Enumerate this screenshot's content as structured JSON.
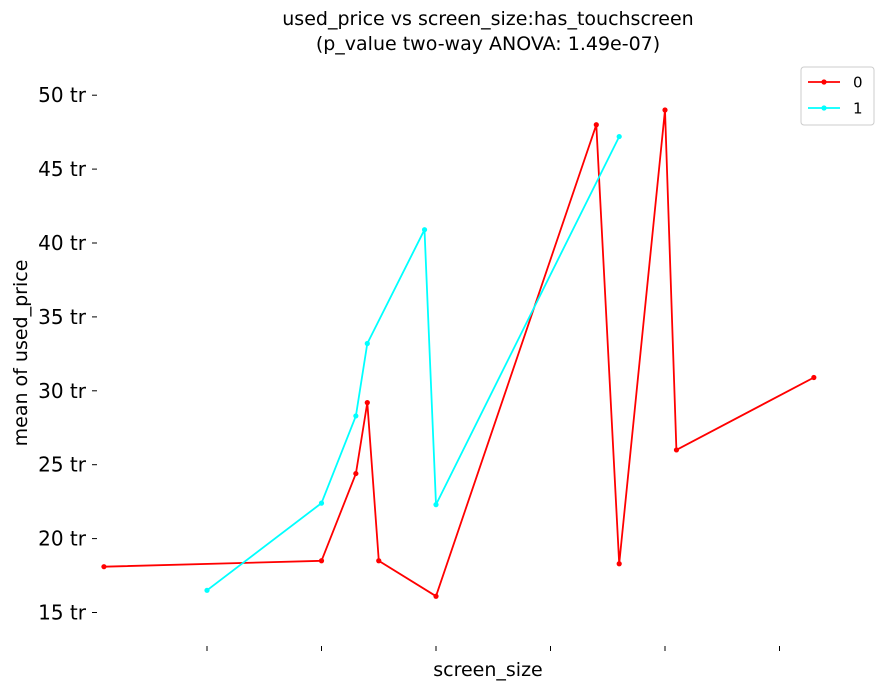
{
  "chart_data": {
    "type": "line",
    "title": [
      "used_price vs screen_size:has_touchscreen",
      "(p_value two-way ANOVA: 1.49e-07)"
    ],
    "xlabel": "screen_size",
    "ylabel": "mean of used_price",
    "ylim": [
      13,
      52
    ],
    "y_ticks": [
      15,
      20,
      25,
      30,
      35,
      40,
      45,
      50
    ],
    "y_tick_suffix": " tr",
    "xlim": [
      -0.3,
      5.8
    ],
    "x_ticks": [
      0.5,
      1.5,
      2.5,
      3.5,
      4.5,
      5.5
    ],
    "x_tick_labels_visible": false,
    "grid": false,
    "legend_position": "top-right",
    "series": [
      {
        "name": "0",
        "color": "#ff0000",
        "x": [
          -0.4,
          1.5,
          1.8,
          1.9,
          2.0,
          2.5,
          3.9,
          4.1,
          4.5,
          4.6,
          5.8
        ],
        "y": [
          18.1,
          18.5,
          24.4,
          29.2,
          18.5,
          16.1,
          48.0,
          18.3,
          49.0,
          26.0,
          30.9
        ]
      },
      {
        "name": "1",
        "color": "#00ffff",
        "x": [
          0.5,
          1.5,
          1.8,
          1.9,
          2.4,
          2.5,
          4.1
        ],
        "y": [
          16.5,
          22.4,
          28.3,
          33.2,
          40.9,
          22.3,
          47.2
        ]
      }
    ]
  }
}
